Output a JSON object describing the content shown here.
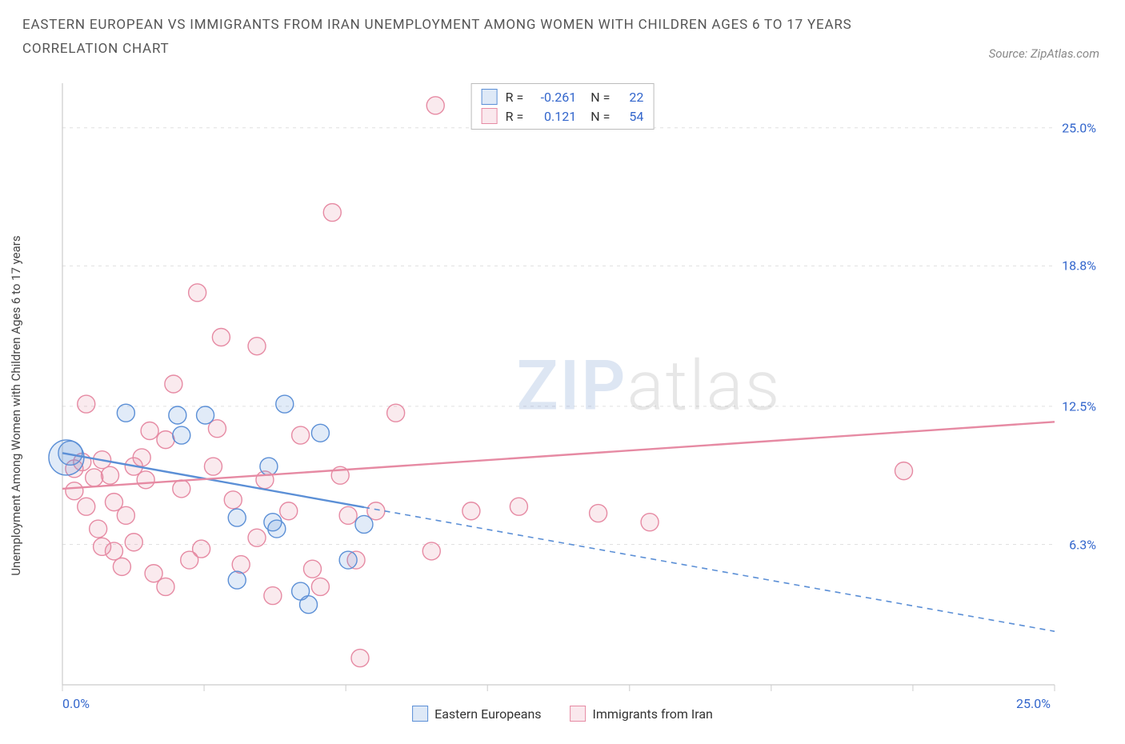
{
  "title": "EASTERN EUROPEAN VS IMMIGRANTS FROM IRAN UNEMPLOYMENT AMONG WOMEN WITH CHILDREN AGES 6 TO 17 YEARS",
  "subtitle": "CORRELATION CHART",
  "source": "Source: ZipAtlas.com",
  "y_axis_label": "Unemployment Among Women with Children Ages 6 to 17 years",
  "watermark_a": "ZIP",
  "watermark_b": "atlas",
  "chart": {
    "type": "scatter",
    "xlim": [
      0,
      25
    ],
    "ylim": [
      0,
      27
    ],
    "x_min_label": "0.0%",
    "x_max_label": "25.0%",
    "y_ticks": [
      {
        "v": 6.3,
        "label": "6.3%"
      },
      {
        "v": 12.5,
        "label": "12.5%"
      },
      {
        "v": 18.8,
        "label": "18.8%"
      },
      {
        "v": 25.0,
        "label": "25.0%"
      }
    ],
    "x_tick_positions": [
      0,
      3.57,
      7.14,
      10.71,
      14.29,
      17.86,
      21.43,
      25
    ],
    "grid_color": "#e0e0e0",
    "axis_color": "#cccccc",
    "background": "#ffffff",
    "marker_radius": 11,
    "marker_stroke_width": 1.4,
    "marker_fill_opacity": 0.18,
    "line_width": 2.4,
    "series": [
      {
        "name": "Eastern Europeans",
        "color": "#5b8fd6",
        "R": "-0.261",
        "N": "22",
        "trend": {
          "y_at_x0": 10.4,
          "y_at_x25": 2.4,
          "solid_until_x": 7.6
        },
        "points": [
          {
            "x": 0.1,
            "y": 10.2,
            "r": 22
          },
          {
            "x": 0.2,
            "y": 10.4,
            "r": 15
          },
          {
            "x": 1.6,
            "y": 12.2
          },
          {
            "x": 2.9,
            "y": 12.1
          },
          {
            "x": 3.6,
            "y": 12.1
          },
          {
            "x": 3.0,
            "y": 11.2
          },
          {
            "x": 4.4,
            "y": 7.5
          },
          {
            "x": 4.4,
            "y": 4.7
          },
          {
            "x": 5.2,
            "y": 9.8
          },
          {
            "x": 5.6,
            "y": 12.6
          },
          {
            "x": 5.3,
            "y": 7.3
          },
          {
            "x": 5.4,
            "y": 7.0
          },
          {
            "x": 6.0,
            "y": 4.2
          },
          {
            "x": 6.2,
            "y": 3.6
          },
          {
            "x": 6.5,
            "y": 11.3
          },
          {
            "x": 7.2,
            "y": 5.6
          },
          {
            "x": 7.6,
            "y": 7.2
          }
        ]
      },
      {
        "name": "Immigrants from Iran",
        "color": "#e68aa3",
        "R": "0.121",
        "N": "54",
        "trend": {
          "y_at_x0": 8.8,
          "y_at_x25": 11.8,
          "solid_until_x": 25
        },
        "points": [
          {
            "x": 0.3,
            "y": 8.7
          },
          {
            "x": 0.3,
            "y": 9.7
          },
          {
            "x": 0.5,
            "y": 10.0
          },
          {
            "x": 0.6,
            "y": 8.0
          },
          {
            "x": 0.6,
            "y": 12.6
          },
          {
            "x": 0.8,
            "y": 9.3
          },
          {
            "x": 0.9,
            "y": 7.0
          },
          {
            "x": 1.0,
            "y": 10.1
          },
          {
            "x": 1.0,
            "y": 6.2
          },
          {
            "x": 1.2,
            "y": 9.4
          },
          {
            "x": 1.3,
            "y": 6.0
          },
          {
            "x": 1.3,
            "y": 8.2
          },
          {
            "x": 1.5,
            "y": 5.3
          },
          {
            "x": 1.6,
            "y": 7.6
          },
          {
            "x": 1.8,
            "y": 9.8
          },
          {
            "x": 1.8,
            "y": 6.4
          },
          {
            "x": 2.0,
            "y": 10.2
          },
          {
            "x": 2.1,
            "y": 9.2
          },
          {
            "x": 2.2,
            "y": 11.4
          },
          {
            "x": 2.3,
            "y": 5.0
          },
          {
            "x": 2.6,
            "y": 11.0
          },
          {
            "x": 2.6,
            "y": 4.4
          },
          {
            "x": 2.8,
            "y": 13.5
          },
          {
            "x": 3.0,
            "y": 8.8
          },
          {
            "x": 3.2,
            "y": 5.6
          },
          {
            "x": 3.4,
            "y": 17.6
          },
          {
            "x": 3.5,
            "y": 6.1
          },
          {
            "x": 3.8,
            "y": 9.8
          },
          {
            "x": 3.9,
            "y": 11.5
          },
          {
            "x": 4.0,
            "y": 15.6
          },
          {
            "x": 4.3,
            "y": 8.3
          },
          {
            "x": 4.5,
            "y": 5.4
          },
          {
            "x": 4.9,
            "y": 15.2
          },
          {
            "x": 4.9,
            "y": 6.6
          },
          {
            "x": 5.1,
            "y": 9.2
          },
          {
            "x": 5.3,
            "y": 4.0
          },
          {
            "x": 5.7,
            "y": 7.8
          },
          {
            "x": 6.0,
            "y": 11.2
          },
          {
            "x": 6.3,
            "y": 5.2
          },
          {
            "x": 6.5,
            "y": 4.4
          },
          {
            "x": 6.8,
            "y": 21.2
          },
          {
            "x": 7.0,
            "y": 9.4
          },
          {
            "x": 7.2,
            "y": 7.6
          },
          {
            "x": 7.4,
            "y": 5.6
          },
          {
            "x": 7.5,
            "y": 1.2
          },
          {
            "x": 7.9,
            "y": 7.8
          },
          {
            "x": 8.4,
            "y": 12.2
          },
          {
            "x": 9.3,
            "y": 6.0
          },
          {
            "x": 9.4,
            "y": 26.0
          },
          {
            "x": 10.3,
            "y": 7.8
          },
          {
            "x": 11.5,
            "y": 8.0
          },
          {
            "x": 13.5,
            "y": 7.7
          },
          {
            "x": 14.8,
            "y": 7.3
          },
          {
            "x": 21.2,
            "y": 9.6
          }
        ]
      }
    ]
  }
}
